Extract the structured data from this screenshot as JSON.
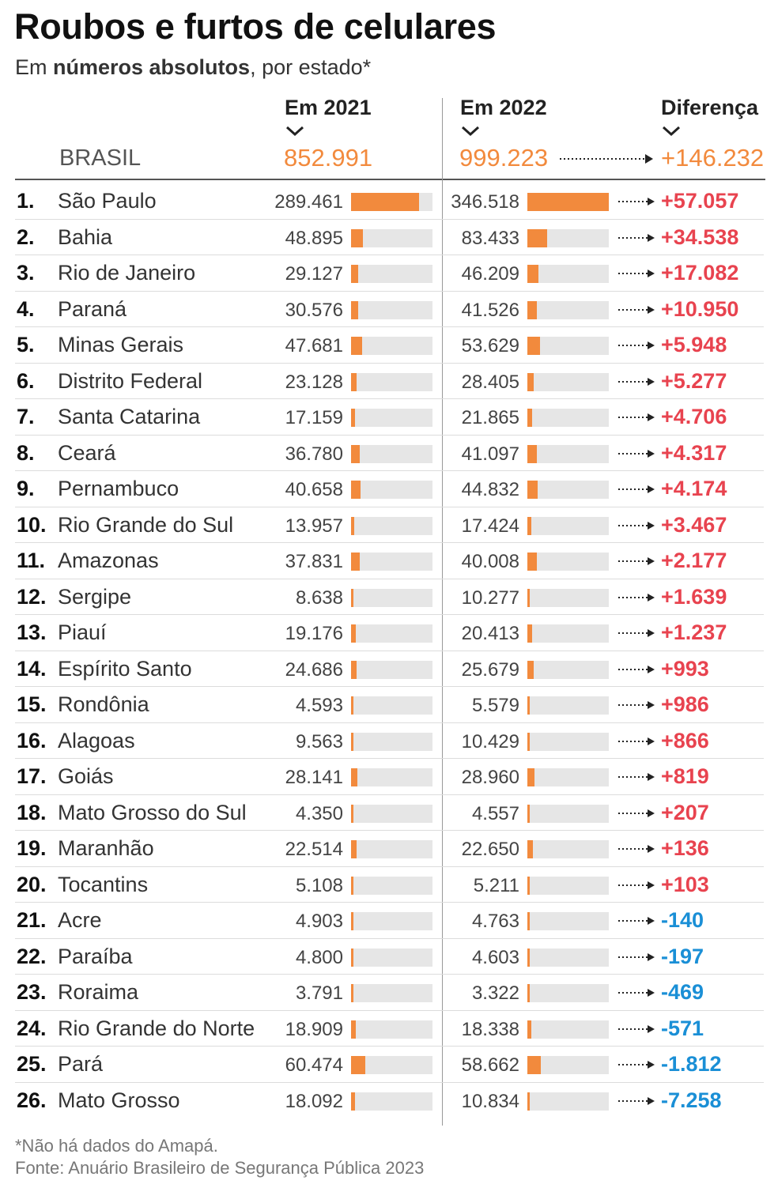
{
  "chart_data": {
    "type": "table",
    "title": "Roubos e furtos de celulares",
    "subtitle_prefix": "Em ",
    "subtitle_bold": "números absolutos",
    "subtitle_suffix": ", por estado*",
    "columns": [
      "Em 2021",
      "Em 2022",
      "Diferença"
    ],
    "brasil": {
      "label": "BRASIL",
      "v2021": "852.991",
      "v2022": "999.223",
      "diff": "+146.232"
    },
    "bar_max": 346518,
    "rows": [
      {
        "rank": "1.",
        "state": "São Paulo",
        "v2021": 289461,
        "v2022": 346518,
        "t2021": "289.461",
        "t2022": "346.518",
        "diff": "+57.057"
      },
      {
        "rank": "2.",
        "state": "Bahia",
        "v2021": 48895,
        "v2022": 83433,
        "t2021": "48.895",
        "t2022": "83.433",
        "diff": "+34.538"
      },
      {
        "rank": "3.",
        "state": "Rio de Janeiro",
        "v2021": 29127,
        "v2022": 46209,
        "t2021": "29.127",
        "t2022": "46.209",
        "diff": "+17.082"
      },
      {
        "rank": "4.",
        "state": "Paraná",
        "v2021": 30576,
        "v2022": 41526,
        "t2021": "30.576",
        "t2022": "41.526",
        "diff": "+10.950"
      },
      {
        "rank": "5.",
        "state": "Minas Gerais",
        "v2021": 47681,
        "v2022": 53629,
        "t2021": "47.681",
        "t2022": "53.629",
        "diff": "+5.948"
      },
      {
        "rank": "6.",
        "state": "Distrito Federal",
        "v2021": 23128,
        "v2022": 28405,
        "t2021": "23.128",
        "t2022": "28.405",
        "diff": "+5.277"
      },
      {
        "rank": "7.",
        "state": "Santa Catarina",
        "v2021": 17159,
        "v2022": 21865,
        "t2021": "17.159",
        "t2022": "21.865",
        "diff": "+4.706"
      },
      {
        "rank": "8.",
        "state": "Ceará",
        "v2021": 36780,
        "v2022": 41097,
        "t2021": "36.780",
        "t2022": "41.097",
        "diff": "+4.317"
      },
      {
        "rank": "9.",
        "state": "Pernambuco",
        "v2021": 40658,
        "v2022": 44832,
        "t2021": "40.658",
        "t2022": "44.832",
        "diff": "+4.174"
      },
      {
        "rank": "10.",
        "state": "Rio Grande do Sul",
        "v2021": 13957,
        "v2022": 17424,
        "t2021": "13.957",
        "t2022": "17.424",
        "diff": "+3.467"
      },
      {
        "rank": "11.",
        "state": "Amazonas",
        "v2021": 37831,
        "v2022": 40008,
        "t2021": "37.831",
        "t2022": "40.008",
        "diff": "+2.177"
      },
      {
        "rank": "12.",
        "state": "Sergipe",
        "v2021": 8638,
        "v2022": 10277,
        "t2021": "8.638",
        "t2022": "10.277",
        "diff": "+1.639"
      },
      {
        "rank": "13.",
        "state": "Piauí",
        "v2021": 19176,
        "v2022": 20413,
        "t2021": "19.176",
        "t2022": "20.413",
        "diff": "+1.237"
      },
      {
        "rank": "14.",
        "state": "Espírito Santo",
        "v2021": 24686,
        "v2022": 25679,
        "t2021": "24.686",
        "t2022": "25.679",
        "diff": "+993"
      },
      {
        "rank": "15.",
        "state": "Rondônia",
        "v2021": 4593,
        "v2022": 5579,
        "t2021": "4.593",
        "t2022": "5.579",
        "diff": "+986"
      },
      {
        "rank": "16.",
        "state": "Alagoas",
        "v2021": 9563,
        "v2022": 10429,
        "t2021": "9.563",
        "t2022": "10.429",
        "diff": "+866"
      },
      {
        "rank": "17.",
        "state": "Goiás",
        "v2021": 28141,
        "v2022": 28960,
        "t2021": "28.141",
        "t2022": "28.960",
        "diff": "+819"
      },
      {
        "rank": "18.",
        "state": "Mato Grosso do Sul",
        "v2021": 4350,
        "v2022": 4557,
        "t2021": "4.350",
        "t2022": "4.557",
        "diff": "+207"
      },
      {
        "rank": "19.",
        "state": "Maranhão",
        "v2021": 22514,
        "v2022": 22650,
        "t2021": "22.514",
        "t2022": "22.650",
        "diff": "+136"
      },
      {
        "rank": "20.",
        "state": "Tocantins",
        "v2021": 5108,
        "v2022": 5211,
        "t2021": "5.108",
        "t2022": "5.211",
        "diff": "+103"
      },
      {
        "rank": "21.",
        "state": "Acre",
        "v2021": 4903,
        "v2022": 4763,
        "t2021": "4.903",
        "t2022": "4.763",
        "diff": "-140"
      },
      {
        "rank": "22.",
        "state": "Paraíba",
        "v2021": 4800,
        "v2022": 4603,
        "t2021": "4.800",
        "t2022": "4.603",
        "diff": "-197"
      },
      {
        "rank": "23.",
        "state": "Roraima",
        "v2021": 3791,
        "v2022": 3322,
        "t2021": "3.791",
        "t2022": "3.322",
        "diff": "-469"
      },
      {
        "rank": "24.",
        "state": "Rio Grande do Norte",
        "v2021": 18909,
        "v2022": 18338,
        "t2021": "18.909",
        "t2022": "18.338",
        "diff": "-571"
      },
      {
        "rank": "25.",
        "state": "Pará",
        "v2021": 60474,
        "v2022": 58662,
        "t2021": "60.474",
        "t2022": "58.662",
        "diff": "-1.812"
      },
      {
        "rank": "26.",
        "state": "Mato Grosso",
        "v2021": 18092,
        "v2022": 10834,
        "t2021": "18.092",
        "t2022": "10.834",
        "diff": "-7.258"
      }
    ],
    "footnote": "*Não há dados do Amapá.",
    "source": "Fonte: Anuário Brasileiro de Segurança Pública 2023"
  },
  "colors": {
    "bar": "#f28a3d",
    "track": "#e6e6e6",
    "positive": "#e8434f",
    "negative": "#1a8fd6",
    "brasil_values": "#f28a3d"
  },
  "icons": {
    "column_marker": "chevron-down-icon",
    "diff_marker": "dotted-arrow-icon"
  }
}
